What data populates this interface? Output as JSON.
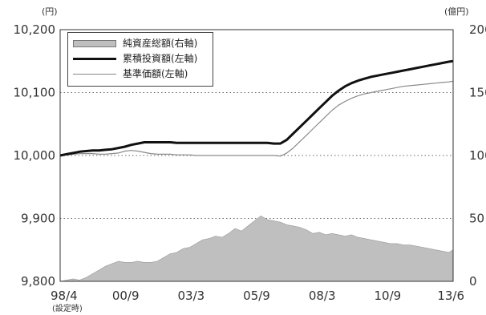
{
  "chart_data": {
    "type": "area+line",
    "left_unit": "(円)",
    "right_unit": "(億円)",
    "x_labels": [
      "98/4",
      "00/9",
      "03/3",
      "05/9",
      "08/3",
      "10/9",
      "13/6"
    ],
    "x_sublabel": "(設定時)",
    "y_left": {
      "ticks": [
        "9,800",
        "9,900",
        "10,000",
        "10,100",
        "10,200"
      ],
      "range": [
        9800,
        10200
      ]
    },
    "y_right": {
      "ticks": [
        "0",
        "50",
        "100",
        "150",
        "200"
      ],
      "range": [
        0,
        200
      ]
    },
    "grid": "dotted horizontal",
    "legend_position": "top-left",
    "series": [
      {
        "name": "純資産総額(右軸)",
        "axis": "right",
        "style": "area",
        "color": "#bfbfbf",
        "x": [
          1998.25,
          1998.5,
          1998.75,
          1999.0,
          1999.25,
          1999.5,
          1999.75,
          2000.0,
          2000.25,
          2000.5,
          2000.75,
          2001.0,
          2001.25,
          2001.5,
          2001.75,
          2002.0,
          2002.25,
          2002.5,
          2002.75,
          2003.0,
          2003.25,
          2003.5,
          2003.75,
          2004.0,
          2004.25,
          2004.5,
          2004.75,
          2005.0,
          2005.25,
          2005.5,
          2005.75,
          2006.0,
          2006.25,
          2006.5,
          2006.75,
          2007.0,
          2007.25,
          2007.5,
          2007.75,
          2008.0,
          2008.25,
          2008.5,
          2008.75,
          2009.0,
          2009.25,
          2009.5,
          2009.75,
          2010.0,
          2010.25,
          2010.5,
          2010.75,
          2011.0,
          2011.25,
          2011.5,
          2011.75,
          2012.0,
          2012.25,
          2012.5,
          2012.75,
          2013.0,
          2013.25,
          2013.42
        ],
        "y": [
          0,
          1,
          2,
          1,
          3,
          6,
          9,
          12,
          14,
          16,
          15,
          15,
          16,
          15,
          15,
          16,
          19,
          22,
          23,
          26,
          27,
          30,
          33,
          34,
          36,
          35,
          38,
          42,
          40,
          44,
          48,
          52,
          49,
          48,
          47,
          45,
          44,
          43,
          41,
          38,
          39,
          37,
          38,
          37,
          36,
          37,
          35,
          34,
          33,
          32,
          31,
          30,
          30,
          29,
          29,
          28,
          27,
          26,
          25,
          24,
          23,
          25
        ]
      },
      {
        "name": "累積投資額(左軸)",
        "axis": "left",
        "style": "thick-line",
        "color": "#111111",
        "x": [
          1998.25,
          1998.5,
          1998.75,
          1999.0,
          1999.25,
          1999.5,
          1999.75,
          2000.0,
          2000.25,
          2000.5,
          2000.75,
          2001.0,
          2001.25,
          2001.5,
          2001.75,
          2002.0,
          2002.25,
          2002.5,
          2002.75,
          2003.0,
          2003.25,
          2003.5,
          2003.75,
          2004.0,
          2004.25,
          2004.5,
          2004.75,
          2005.0,
          2005.25,
          2005.5,
          2005.75,
          2006.0,
          2006.25,
          2006.5,
          2006.75,
          2007.0,
          2007.25,
          2007.5,
          2007.75,
          2008.0,
          2008.25,
          2008.5,
          2008.75,
          2009.0,
          2009.25,
          2009.5,
          2009.75,
          2010.0,
          2010.25,
          2010.5,
          2010.75,
          2011.0,
          2011.25,
          2011.5,
          2011.75,
          2012.0,
          2012.25,
          2012.5,
          2012.75,
          2013.0,
          2013.25,
          2013.42
        ],
        "y": [
          10000,
          10002,
          10004,
          10006,
          10007,
          10008,
          10008,
          10009,
          10010,
          10012,
          10014,
          10017,
          10019,
          10021,
          10021,
          10021,
          10021,
          10021,
          10020,
          10020,
          10020,
          10020,
          10020,
          10020,
          10020,
          10020,
          10020,
          10020,
          10020,
          10020,
          10020,
          10020,
          10020,
          10019,
          10019,
          10025,
          10035,
          10045,
          10055,
          10065,
          10075,
          10085,
          10095,
          10103,
          10110,
          10115,
          10119,
          10122,
          10125,
          10127,
          10129,
          10131,
          10133,
          10135,
          10137,
          10139,
          10141,
          10143,
          10145,
          10147,
          10149,
          10150
        ]
      },
      {
        "name": "基準価額(左軸)",
        "axis": "left",
        "style": "thin-line",
        "color": "#8a8a8a",
        "x": [
          1998.25,
          1998.5,
          1998.75,
          1999.0,
          1999.25,
          1999.5,
          1999.75,
          2000.0,
          2000.25,
          2000.5,
          2000.75,
          2001.0,
          2001.25,
          2001.5,
          2001.75,
          2002.0,
          2002.25,
          2002.5,
          2002.75,
          2003.0,
          2003.25,
          2003.5,
          2003.75,
          2004.0,
          2004.25,
          2004.5,
          2004.75,
          2005.0,
          2005.25,
          2005.5,
          2005.75,
          2006.0,
          2006.25,
          2006.5,
          2006.75,
          2007.0,
          2007.25,
          2007.5,
          2007.75,
          2008.0,
          2008.25,
          2008.5,
          2008.75,
          2009.0,
          2009.25,
          2009.5,
          2009.75,
          2010.0,
          2010.25,
          2010.5,
          2010.75,
          2011.0,
          2011.25,
          2011.5,
          2011.75,
          2012.0,
          2012.25,
          2012.5,
          2012.75,
          2013.0,
          2013.25,
          2013.42
        ],
        "y": [
          10000,
          10001,
          10002,
          10003,
          10003,
          10003,
          10002,
          10002,
          10003,
          10004,
          10007,
          10008,
          10007,
          10005,
          10003,
          10002,
          10002,
          10002,
          10001,
          10001,
          10001,
          10000,
          10000,
          10000,
          10000,
          10000,
          10000,
          10000,
          10000,
          10000,
          10000,
          10000,
          10000,
          10000,
          9999,
          10004,
          10012,
          10022,
          10032,
          10042,
          10052,
          10062,
          10072,
          10080,
          10086,
          10091,
          10095,
          10098,
          10100,
          10102,
          10104,
          10106,
          10108,
          10110,
          10111,
          10112,
          10113,
          10114,
          10115,
          10116,
          10117,
          10118
        ]
      }
    ]
  }
}
